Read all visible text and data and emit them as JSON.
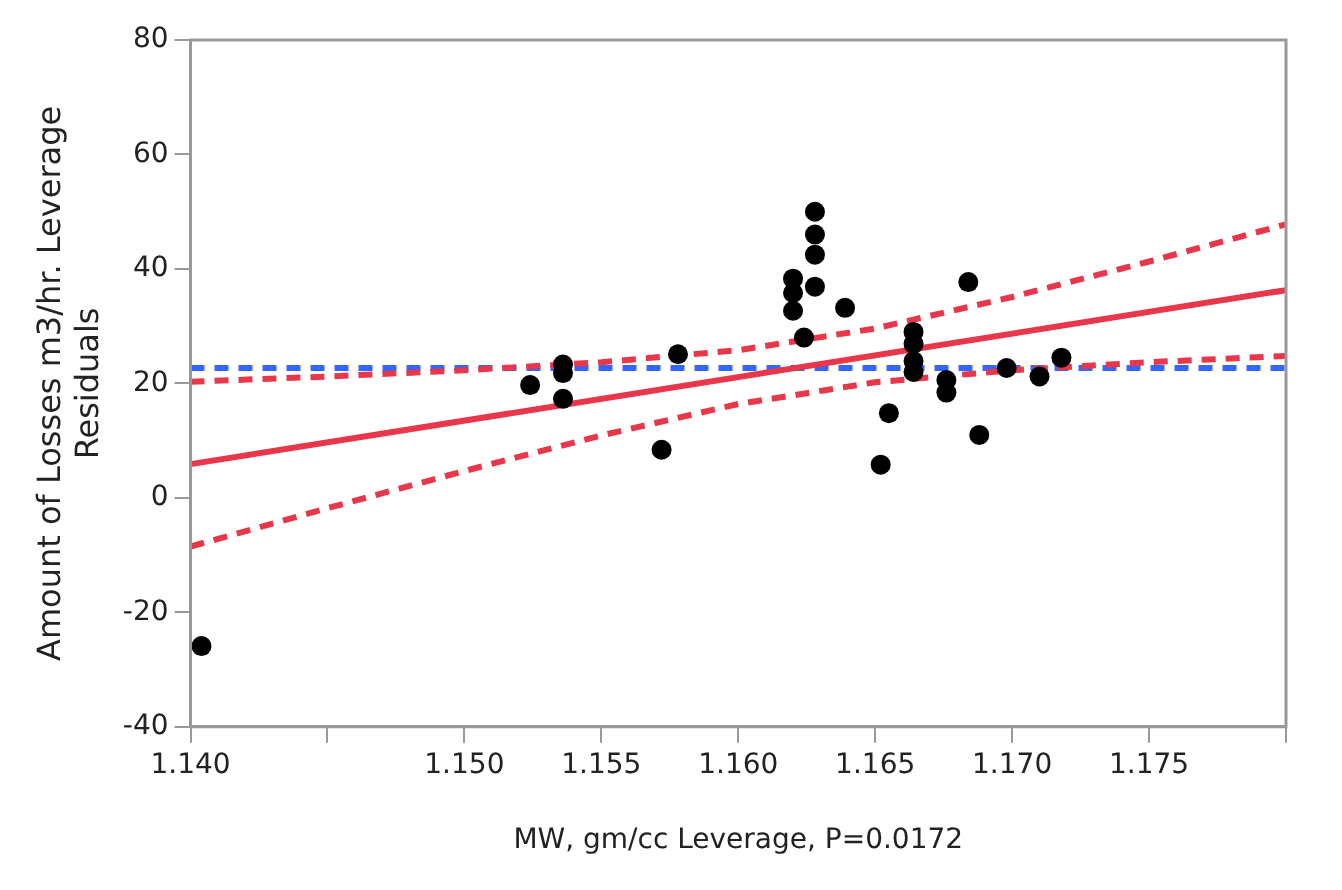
{
  "chart_data": {
    "type": "scatter",
    "xlabel": "MW, gm/cc Leverage, P=0.0172",
    "ylabel": "Amount of Losses m3/hr. Leverage\nResiduals",
    "xlim": [
      1.14,
      1.18
    ],
    "xticks": [
      {
        "value": 1.14,
        "label": "1.140"
      },
      {
        "value": 1.145,
        "label": null
      },
      {
        "value": 1.15,
        "label": "1.150"
      },
      {
        "value": 1.155,
        "label": "1.155"
      },
      {
        "value": 1.16,
        "label": "1.160"
      },
      {
        "value": 1.165,
        "label": "1.165"
      },
      {
        "value": 1.17,
        "label": "1.170"
      },
      {
        "value": 1.175,
        "label": "1.175"
      },
      {
        "value": 1.18,
        "label": null
      }
    ],
    "ylim": [
      -40,
      80
    ],
    "yticks": [
      -40,
      -20,
      0,
      20,
      40,
      60,
      80
    ],
    "grid": false,
    "legend": false,
    "ref_lines": [
      {
        "axis": "y",
        "value": 22.7,
        "color": "#3366ff",
        "line_style": "dashed"
      }
    ],
    "series": [
      {
        "type": "scatter",
        "color": "#000000",
        "marker": "circle",
        "x": [
          1.1404,
          1.1524,
          1.1536,
          1.1536,
          1.1536,
          1.1572,
          1.1578,
          1.162,
          1.162,
          1.162,
          1.1624,
          1.1628,
          1.1628,
          1.1628,
          1.1628,
          1.1639,
          1.1652,
          1.1655,
          1.1664,
          1.1664,
          1.1664,
          1.1664,
          1.1676,
          1.1676,
          1.1684,
          1.1688,
          1.1698,
          1.171,
          1.1718
        ],
        "values": [
          -25.9,
          19.7,
          23.3,
          21.8,
          17.3,
          8.4,
          25.1,
          38.3,
          35.8,
          32.7,
          28.0,
          50.0,
          46.0,
          42.5,
          36.9,
          33.2,
          5.8,
          14.8,
          29.0,
          26.9,
          23.9,
          22.0,
          20.6,
          18.4,
          37.7,
          11.0,
          22.7,
          21.2,
          24.5
        ]
      },
      {
        "type": "line",
        "color": "#e8374a",
        "marker": "none",
        "line_style": "solid",
        "x": [
          1.14,
          1.18
        ],
        "values": [
          5.9,
          36.3
        ]
      },
      {
        "type": "line",
        "color": "#e8374a",
        "marker": "none",
        "line_style": "dashed",
        "x": [
          1.14,
          1.145,
          1.15,
          1.155,
          1.16,
          1.165,
          1.17,
          1.175,
          1.18
        ],
        "values": [
          20.3,
          21.2,
          22.3,
          23.7,
          25.8,
          29.6,
          35.1,
          41.3,
          47.8
        ]
      },
      {
        "type": "line",
        "color": "#e8374a",
        "marker": "none",
        "line_style": "dashed",
        "x": [
          1.14,
          1.145,
          1.15,
          1.155,
          1.16,
          1.165,
          1.17,
          1.175,
          1.18
        ],
        "values": [
          -8.5,
          -1.8,
          4.7,
          10.9,
          16.4,
          20.2,
          22.3,
          23.7,
          24.8
        ]
      }
    ]
  }
}
